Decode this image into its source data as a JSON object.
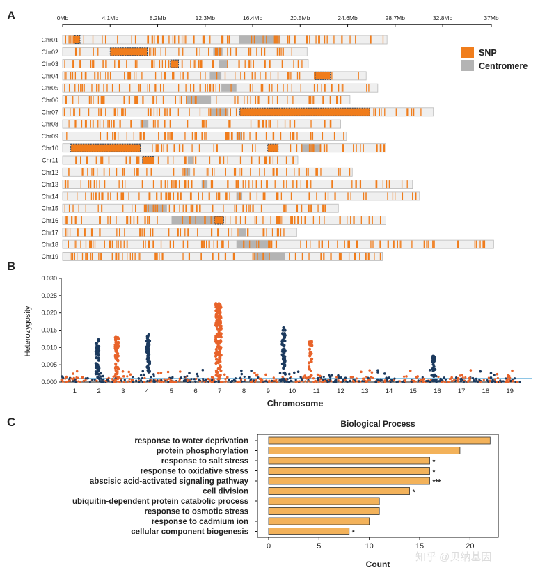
{
  "panelA": {
    "letter": "A",
    "unit": "Mb",
    "axis_max_mb": 37,
    "ticks": [
      {
        "mb": 0,
        "label": "0Mb"
      },
      {
        "mb": 4.1,
        "label": "4.1Mb"
      },
      {
        "mb": 8.2,
        "label": "8.2Mb"
      },
      {
        "mb": 12.3,
        "label": "12.3Mb"
      },
      {
        "mb": 16.4,
        "label": "16.4Mb"
      },
      {
        "mb": 20.5,
        "label": "20.5Mb"
      },
      {
        "mb": 24.6,
        "label": "24.6Mb"
      },
      {
        "mb": 28.7,
        "label": "28.7Mb"
      },
      {
        "mb": 32.8,
        "label": "32.8Mb"
      },
      {
        "mb": 37,
        "label": "37Mb"
      }
    ],
    "legend": {
      "snp_label": "SNP",
      "centromere_label": "Centromere",
      "snp_color": "#f07d1c",
      "centromere_color": "#b4b4b4"
    },
    "chromosomes": [
      {
        "name": "Chr01",
        "length": 28.0,
        "centromere": [
          15.2,
          18.8
        ],
        "regions": [
          [
            1.0,
            1.5
          ]
        ]
      },
      {
        "name": "Chr02",
        "length": 21.1,
        "centromere": [
          13.0,
          13.8
        ],
        "regions": [
          [
            4.1,
            7.3
          ]
        ]
      },
      {
        "name": "Chr03",
        "length": 21.2,
        "centromere": [
          13.5,
          14.2
        ],
        "regions": [
          [
            9.3,
            10.0
          ]
        ]
      },
      {
        "name": "Chr04",
        "length": 26.2,
        "centromere": [
          12.7,
          13.7
        ],
        "regions": [
          [
            21.8,
            23.1
          ]
        ]
      },
      {
        "name": "Chr05",
        "length": 27.2,
        "centromere": [
          13.7,
          15.0
        ],
        "regions": []
      },
      {
        "name": "Chr06",
        "length": 24.8,
        "centromere": [
          10.7,
          12.8
        ],
        "regions": []
      },
      {
        "name": "Chr07",
        "length": 32.0,
        "centromere": [
          12.8,
          14.3
        ],
        "regions": [
          [
            15.3,
            26.5
          ]
        ]
      },
      {
        "name": "Chr08",
        "length": 24.0,
        "centromere": [
          6.7,
          7.4
        ],
        "regions": []
      },
      {
        "name": "Chr09",
        "length": 24.5,
        "centromere": [
          15.0,
          15.5
        ],
        "regions": []
      },
      {
        "name": "Chr10",
        "length": 27.9,
        "centromere": [
          20.6,
          22.3
        ],
        "regions": [
          [
            0.7,
            6.7
          ],
          [
            17.7,
            18.6
          ]
        ]
      },
      {
        "name": "Chr11",
        "length": 20.3,
        "centromere": [
          10.8,
          11.3
        ],
        "regions": [
          [
            6.9,
            7.9
          ]
        ]
      },
      {
        "name": "Chr12",
        "length": 25.0,
        "centromere": [
          10.5,
          11.0
        ],
        "regions": []
      },
      {
        "name": "Chr13",
        "length": 30.2,
        "centromere": [
          12.0,
          12.5
        ],
        "regions": []
      },
      {
        "name": "Chr14",
        "length": 30.8,
        "centromere": [
          15.0,
          15.5
        ],
        "regions": []
      },
      {
        "name": "Chr15",
        "length": 23.8,
        "centromere": [
          7.2,
          9.0
        ],
        "regions": []
      },
      {
        "name": "Chr16",
        "length": 27.9,
        "centromere": [
          9.4,
          13.1
        ],
        "regions": [
          [
            13.1,
            13.9
          ]
        ]
      },
      {
        "name": "Chr17",
        "length": 20.2,
        "centromere": [
          15.2,
          15.8
        ],
        "regions": []
      },
      {
        "name": "Chr18",
        "length": 37.2,
        "centromere": [
          15.0,
          17.8
        ],
        "regions": []
      },
      {
        "name": "Chr19",
        "length": 27.6,
        "centromere": [
          16.5,
          19.2
        ],
        "regions": []
      }
    ]
  },
  "panelB": {
    "letter": "B",
    "chart_data": {
      "type": "scatter",
      "title": "",
      "xlabel": "Chromosome",
      "ylabel": "Heterozygosity",
      "ylim": [
        0,
        0.03
      ],
      "yticks": [
        "0.000",
        "0.005",
        "0.010",
        "0.015",
        "0.020",
        "0.025",
        "0.030"
      ],
      "categories": [
        "1",
        "2",
        "3",
        "4",
        "5",
        "6",
        "7",
        "8",
        "9",
        "10",
        "11",
        "12",
        "13",
        "14",
        "15",
        "16",
        "17",
        "18",
        "19"
      ],
      "series_colors": [
        "#e8632a",
        "#1c3a5e"
      ],
      "threshold": 0.001,
      "threshold_color": "#4aa3d8",
      "peaks": [
        {
          "chrom": 2,
          "offset": 0.5,
          "max": 0.0123,
          "color": 1
        },
        {
          "chrom": 3,
          "offset": 0.3,
          "max": 0.013,
          "color": 0
        },
        {
          "chrom": 4,
          "offset": 0.6,
          "max": 0.0137,
          "color": 1
        },
        {
          "chrom": 7,
          "offset": 0.5,
          "max": 0.0227,
          "color": 0
        },
        {
          "chrom": 10,
          "offset": 0.2,
          "max": 0.0157,
          "color": 1
        },
        {
          "chrom": 11,
          "offset": 0.3,
          "max": 0.0118,
          "color": 0
        },
        {
          "chrom": 16,
          "offset": 0.4,
          "max": 0.0075,
          "color": 1
        }
      ]
    }
  },
  "panelC": {
    "letter": "C",
    "chart_data": {
      "type": "bar",
      "orientation": "horizontal",
      "title": "Biological Process",
      "xlabel": "Count",
      "ylabel": "",
      "xlim": [
        0,
        22.6
      ],
      "xticks": [
        0,
        5,
        10,
        15,
        20
      ],
      "bar_color": "#f3b25a",
      "categories": [
        "response to water deprivation",
        "protein phosphorylation",
        "response to salt stress",
        "response to oxidative stress",
        "abscisic acid-activated signaling pathway",
        "cell division",
        "ubiquitin-dependent protein catabolic process",
        "response to osmotic stress",
        "response to cadmium ion",
        "cellular component biogenesis"
      ],
      "values": [
        22,
        19,
        16,
        16,
        16,
        14,
        11,
        11,
        10,
        8
      ],
      "annotations": [
        "",
        "",
        "*",
        "*",
        "***",
        "*",
        "",
        "",
        "",
        "*"
      ]
    }
  },
  "watermark": "知乎 @贝纳基因"
}
